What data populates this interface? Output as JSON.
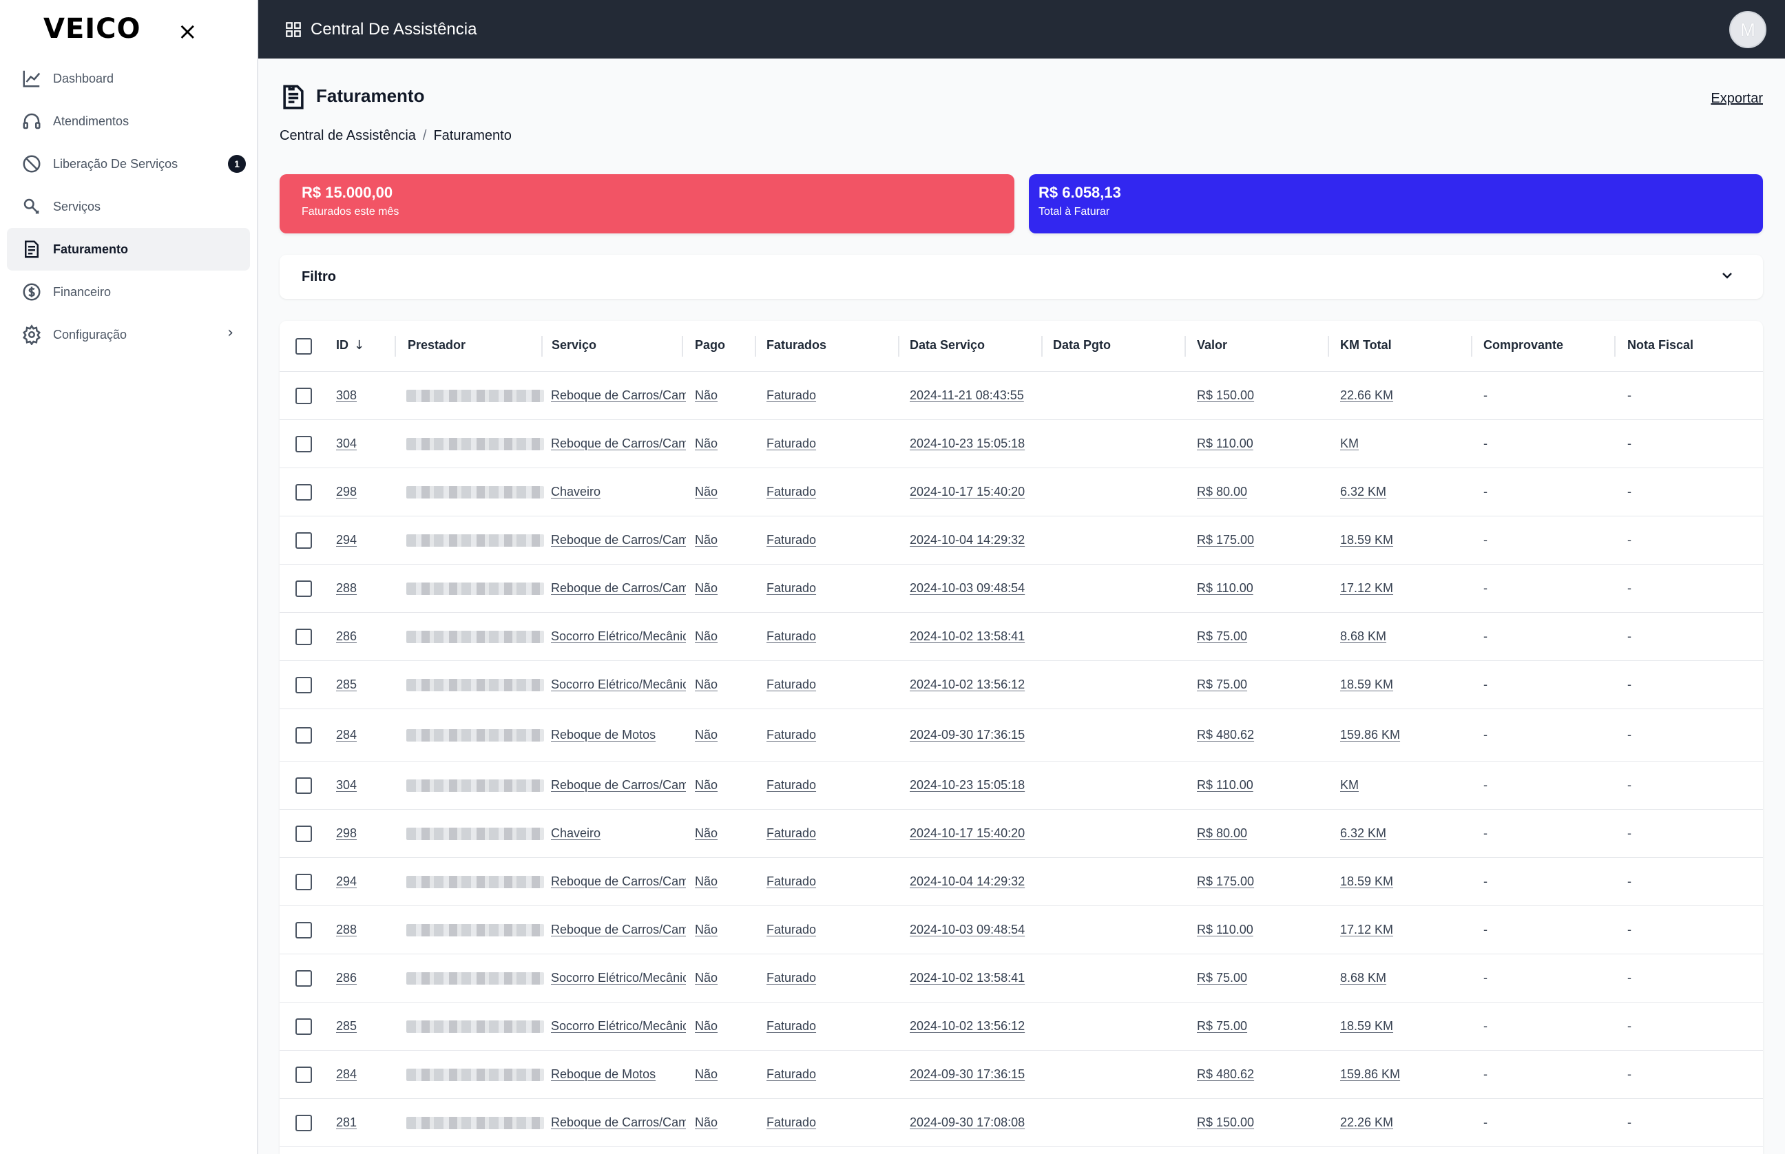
{
  "brand": {
    "logo": "VEICO",
    "close": "×"
  },
  "sidebar": {
    "items": [
      {
        "label": "Dashboard",
        "icon": "chart-line-icon"
      },
      {
        "label": "Atendimentos",
        "icon": "headset-icon"
      },
      {
        "label": "Liberação De Serviços",
        "icon": "block-icon",
        "badge": "1"
      },
      {
        "label": "Serviços",
        "icon": "wrench-icon"
      },
      {
        "label": "Faturamento",
        "icon": "invoice-icon",
        "active": true
      },
      {
        "label": "Financeiro",
        "icon": "dollar-circle-icon"
      },
      {
        "label": "Configuração",
        "icon": "gear-icon",
        "chevron": "›"
      }
    ]
  },
  "topbar": {
    "title": "Central De Assistência",
    "avatar": "M"
  },
  "page": {
    "title": "Faturamento",
    "export_label": "Exportar",
    "breadcrumb": [
      "Central de Assistência",
      "/",
      "Faturamento"
    ]
  },
  "cards": [
    {
      "amount": "R$ 15.000,00",
      "caption": "Faturados este mês",
      "color": "#f25465"
    },
    {
      "amount": "R$ 6.058,13",
      "caption": "Total à Faturar",
      "color": "#3227f0"
    }
  ],
  "filter": {
    "label": "Filtro"
  },
  "table": {
    "columns": [
      "ID",
      "Prestador",
      "Serviço",
      "Pago",
      "Faturados",
      "Data Serviço",
      "Data Pgto",
      "Valor",
      "KM Total",
      "Comprovante",
      "Nota Fiscal"
    ],
    "rows": [
      {
        "id": "308",
        "servico": "Reboque de Carros/Cam",
        "pago": "Não",
        "faturado": "Faturado",
        "data_servico": "2024-11-21 08:43:55",
        "data_pgto": "",
        "valor": "R$ 150.00",
        "km": "22.66 KM",
        "comprovante": "-",
        "nota": "-"
      },
      {
        "id": "304",
        "servico": "Reboque de Carros/Cam",
        "pago": "Não",
        "faturado": "Faturado",
        "data_servico": "2024-10-23 15:05:18",
        "data_pgto": "",
        "valor": "R$ 110.00",
        "km": "KM",
        "comprovante": "-",
        "nota": "-"
      },
      {
        "id": "298",
        "servico": "Chaveiro",
        "pago": "Não",
        "faturado": "Faturado",
        "data_servico": "2024-10-17 15:40:20",
        "data_pgto": "",
        "valor": "R$ 80.00",
        "km": "6.32 KM",
        "comprovante": "-",
        "nota": "-"
      },
      {
        "id": "294",
        "servico": "Reboque de Carros/Cam",
        "pago": "Não",
        "faturado": "Faturado",
        "data_servico": "2024-10-04 14:29:32",
        "data_pgto": "",
        "valor": "R$ 175.00",
        "km": "18.59 KM",
        "comprovante": "-",
        "nota": "-"
      },
      {
        "id": "288",
        "servico": "Reboque de Carros/Cam",
        "pago": "Não",
        "faturado": "Faturado",
        "data_servico": "2024-10-03 09:48:54",
        "data_pgto": "",
        "valor": "R$ 110.00",
        "km": "17.12 KM",
        "comprovante": "-",
        "nota": "-"
      },
      {
        "id": "286",
        "servico": "Socorro Elétrico/Mecânic",
        "pago": "Não",
        "faturado": "Faturado",
        "data_servico": "2024-10-02 13:58:41",
        "data_pgto": "",
        "valor": "R$ 75.00",
        "km": "8.68 KM",
        "comprovante": "-",
        "nota": "-"
      },
      {
        "id": "285",
        "servico": "Socorro Elétrico/Mecânic",
        "pago": "Não",
        "faturado": "Faturado",
        "data_servico": "2024-10-02 13:56:12",
        "data_pgto": "",
        "valor": "R$ 75.00",
        "km": "18.59 KM",
        "comprovante": "-",
        "nota": "-"
      },
      {
        "id": "284",
        "servico": "Reboque de Motos",
        "pago": "Não",
        "faturado": "Faturado",
        "data_servico": "2024-09-30 17:36:15",
        "data_pgto": "",
        "valor": "R$ 480.62",
        "km": "159.86 KM",
        "comprovante": "-",
        "nota": "-"
      },
      {
        "id": "304",
        "servico": "Reboque de Carros/Cam",
        "pago": "Não",
        "faturado": "Faturado",
        "data_servico": "2024-10-23 15:05:18",
        "data_pgto": "",
        "valor": "R$ 110.00",
        "km": "KM",
        "comprovante": "-",
        "nota": "-"
      },
      {
        "id": "298",
        "servico": "Chaveiro",
        "pago": "Não",
        "faturado": "Faturado",
        "data_servico": "2024-10-17 15:40:20",
        "data_pgto": "",
        "valor": "R$ 80.00",
        "km": "6.32 KM",
        "comprovante": "-",
        "nota": "-"
      },
      {
        "id": "294",
        "servico": "Reboque de Carros/Cam",
        "pago": "Não",
        "faturado": "Faturado",
        "data_servico": "2024-10-04 14:29:32",
        "data_pgto": "",
        "valor": "R$ 175.00",
        "km": "18.59 KM",
        "comprovante": "-",
        "nota": "-"
      },
      {
        "id": "288",
        "servico": "Reboque de Carros/Cam",
        "pago": "Não",
        "faturado": "Faturado",
        "data_servico": "2024-10-03 09:48:54",
        "data_pgto": "",
        "valor": "R$ 110.00",
        "km": "17.12 KM",
        "comprovante": "-",
        "nota": "-"
      },
      {
        "id": "286",
        "servico": "Socorro Elétrico/Mecânic",
        "pago": "Não",
        "faturado": "Faturado",
        "data_servico": "2024-10-02 13:58:41",
        "data_pgto": "",
        "valor": "R$ 75.00",
        "km": "8.68 KM",
        "comprovante": "-",
        "nota": "-"
      },
      {
        "id": "285",
        "servico": "Socorro Elétrico/Mecânic",
        "pago": "Não",
        "faturado": "Faturado",
        "data_servico": "2024-10-02 13:56:12",
        "data_pgto": "",
        "valor": "R$ 75.00",
        "km": "18.59 KM",
        "comprovante": "-",
        "nota": "-"
      },
      {
        "id": "284",
        "servico": "Reboque de Motos",
        "pago": "Não",
        "faturado": "Faturado",
        "data_servico": "2024-09-30 17:36:15",
        "data_pgto": "",
        "valor": "R$ 480.62",
        "km": "159.86 KM",
        "comprovante": "-",
        "nota": "-"
      },
      {
        "id": "281",
        "servico": "Reboque de Carros/Cam",
        "pago": "Não",
        "faturado": "Faturado",
        "data_servico": "2024-09-30 17:08:08",
        "data_pgto": "",
        "valor": "R$ 150.00",
        "km": "22.26 KM",
        "comprovante": "-",
        "nota": "-"
      }
    ]
  }
}
